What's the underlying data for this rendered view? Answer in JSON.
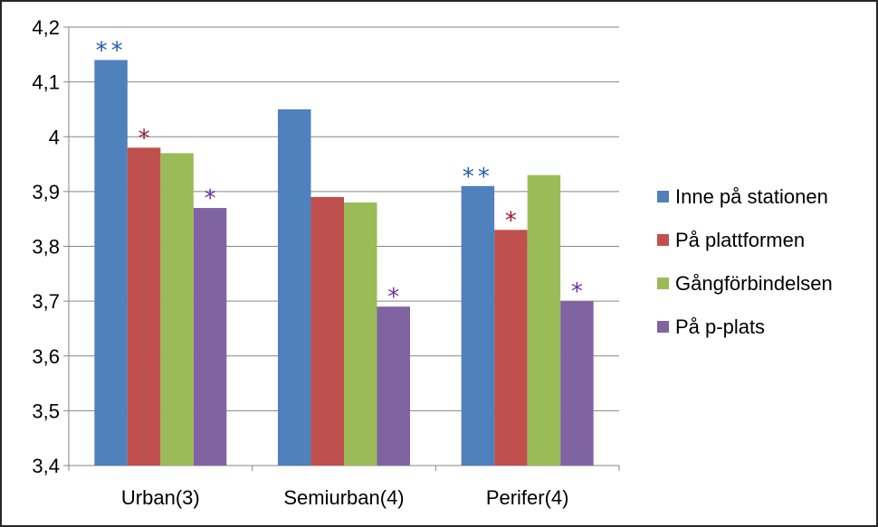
{
  "chart_data": {
    "type": "bar",
    "categories": [
      "Urban(3)",
      "Semiurban(4)",
      "Perifer(4)"
    ],
    "series": [
      {
        "name": "Inne på stationen",
        "color": "#4F81BD",
        "values": [
          4.14,
          4.05,
          3.91
        ],
        "marks": [
          "**",
          "",
          "**"
        ],
        "mark_color": "#1F5FAF"
      },
      {
        "name": "På plattformen",
        "color": "#C0504D",
        "values": [
          3.98,
          3.89,
          3.83
        ],
        "marks": [
          "*",
          "",
          "*"
        ],
        "mark_color": "#9B1B30"
      },
      {
        "name": "Gångförbindelsen",
        "color": "#9BBB59",
        "values": [
          3.97,
          3.88,
          3.93
        ],
        "marks": [
          "",
          "",
          ""
        ],
        "mark_color": "#000000"
      },
      {
        "name": "På p-plats",
        "color": "#8064A2",
        "values": [
          3.87,
          3.69,
          3.7
        ],
        "marks": [
          "*",
          "*",
          "*"
        ],
        "mark_color": "#7030A0"
      }
    ],
    "ylim": [
      3.4,
      4.2
    ],
    "yticks": [
      "3,4",
      "3,5",
      "3,6",
      "3,7",
      "3,8",
      "3,9",
      "4",
      "4,1",
      "4,2"
    ],
    "ytick_values": [
      3.4,
      3.5,
      3.6,
      3.7,
      3.8,
      3.9,
      4.0,
      4.1,
      4.2
    ],
    "grid": true,
    "legend": "right",
    "title": "",
    "xlabel": "",
    "ylabel": ""
  }
}
